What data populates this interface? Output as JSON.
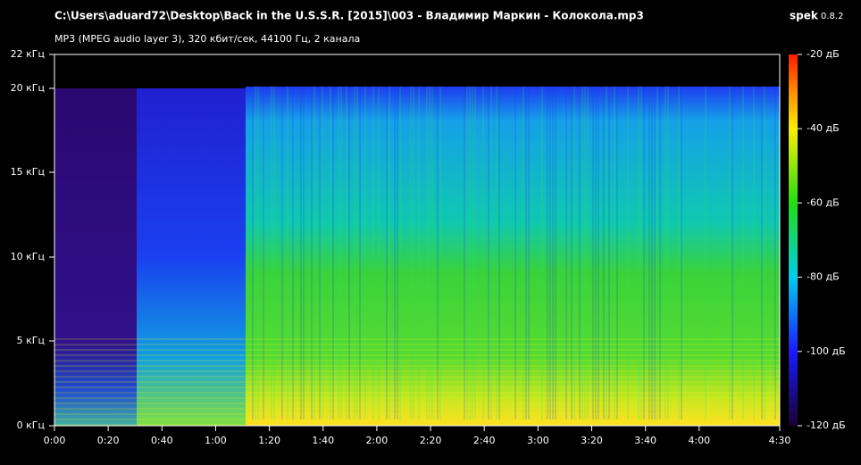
{
  "header": {
    "title": "C:\\Users\\aduard72\\Desktop\\Back in the U.S.S.R. [2015]\\003 - Владимир Маркин - Колокола.mp3",
    "info": "MP3 (MPEG audio layer 3), 320 кбит/сек, 44100 Гц, 2 канала",
    "app": "spek",
    "version": "0.8.2"
  },
  "frequency_axis": [
    "22 кГц",
    "20 кГц",
    "15 кГц",
    "10 кГц",
    "5 кГц",
    "0 кГц"
  ],
  "time_axis": [
    "0:00",
    "0:20",
    "0:40",
    "1:00",
    "1:20",
    "1:40",
    "2:00",
    "2:20",
    "2:40",
    "3:00",
    "3:20",
    "3:40",
    "4:00",
    "4:30"
  ],
  "level_axis": [
    "-20 дБ",
    "-40 дБ",
    "-60 дБ",
    "-80 дБ",
    "-100 дБ",
    "-120 дБ"
  ]
}
